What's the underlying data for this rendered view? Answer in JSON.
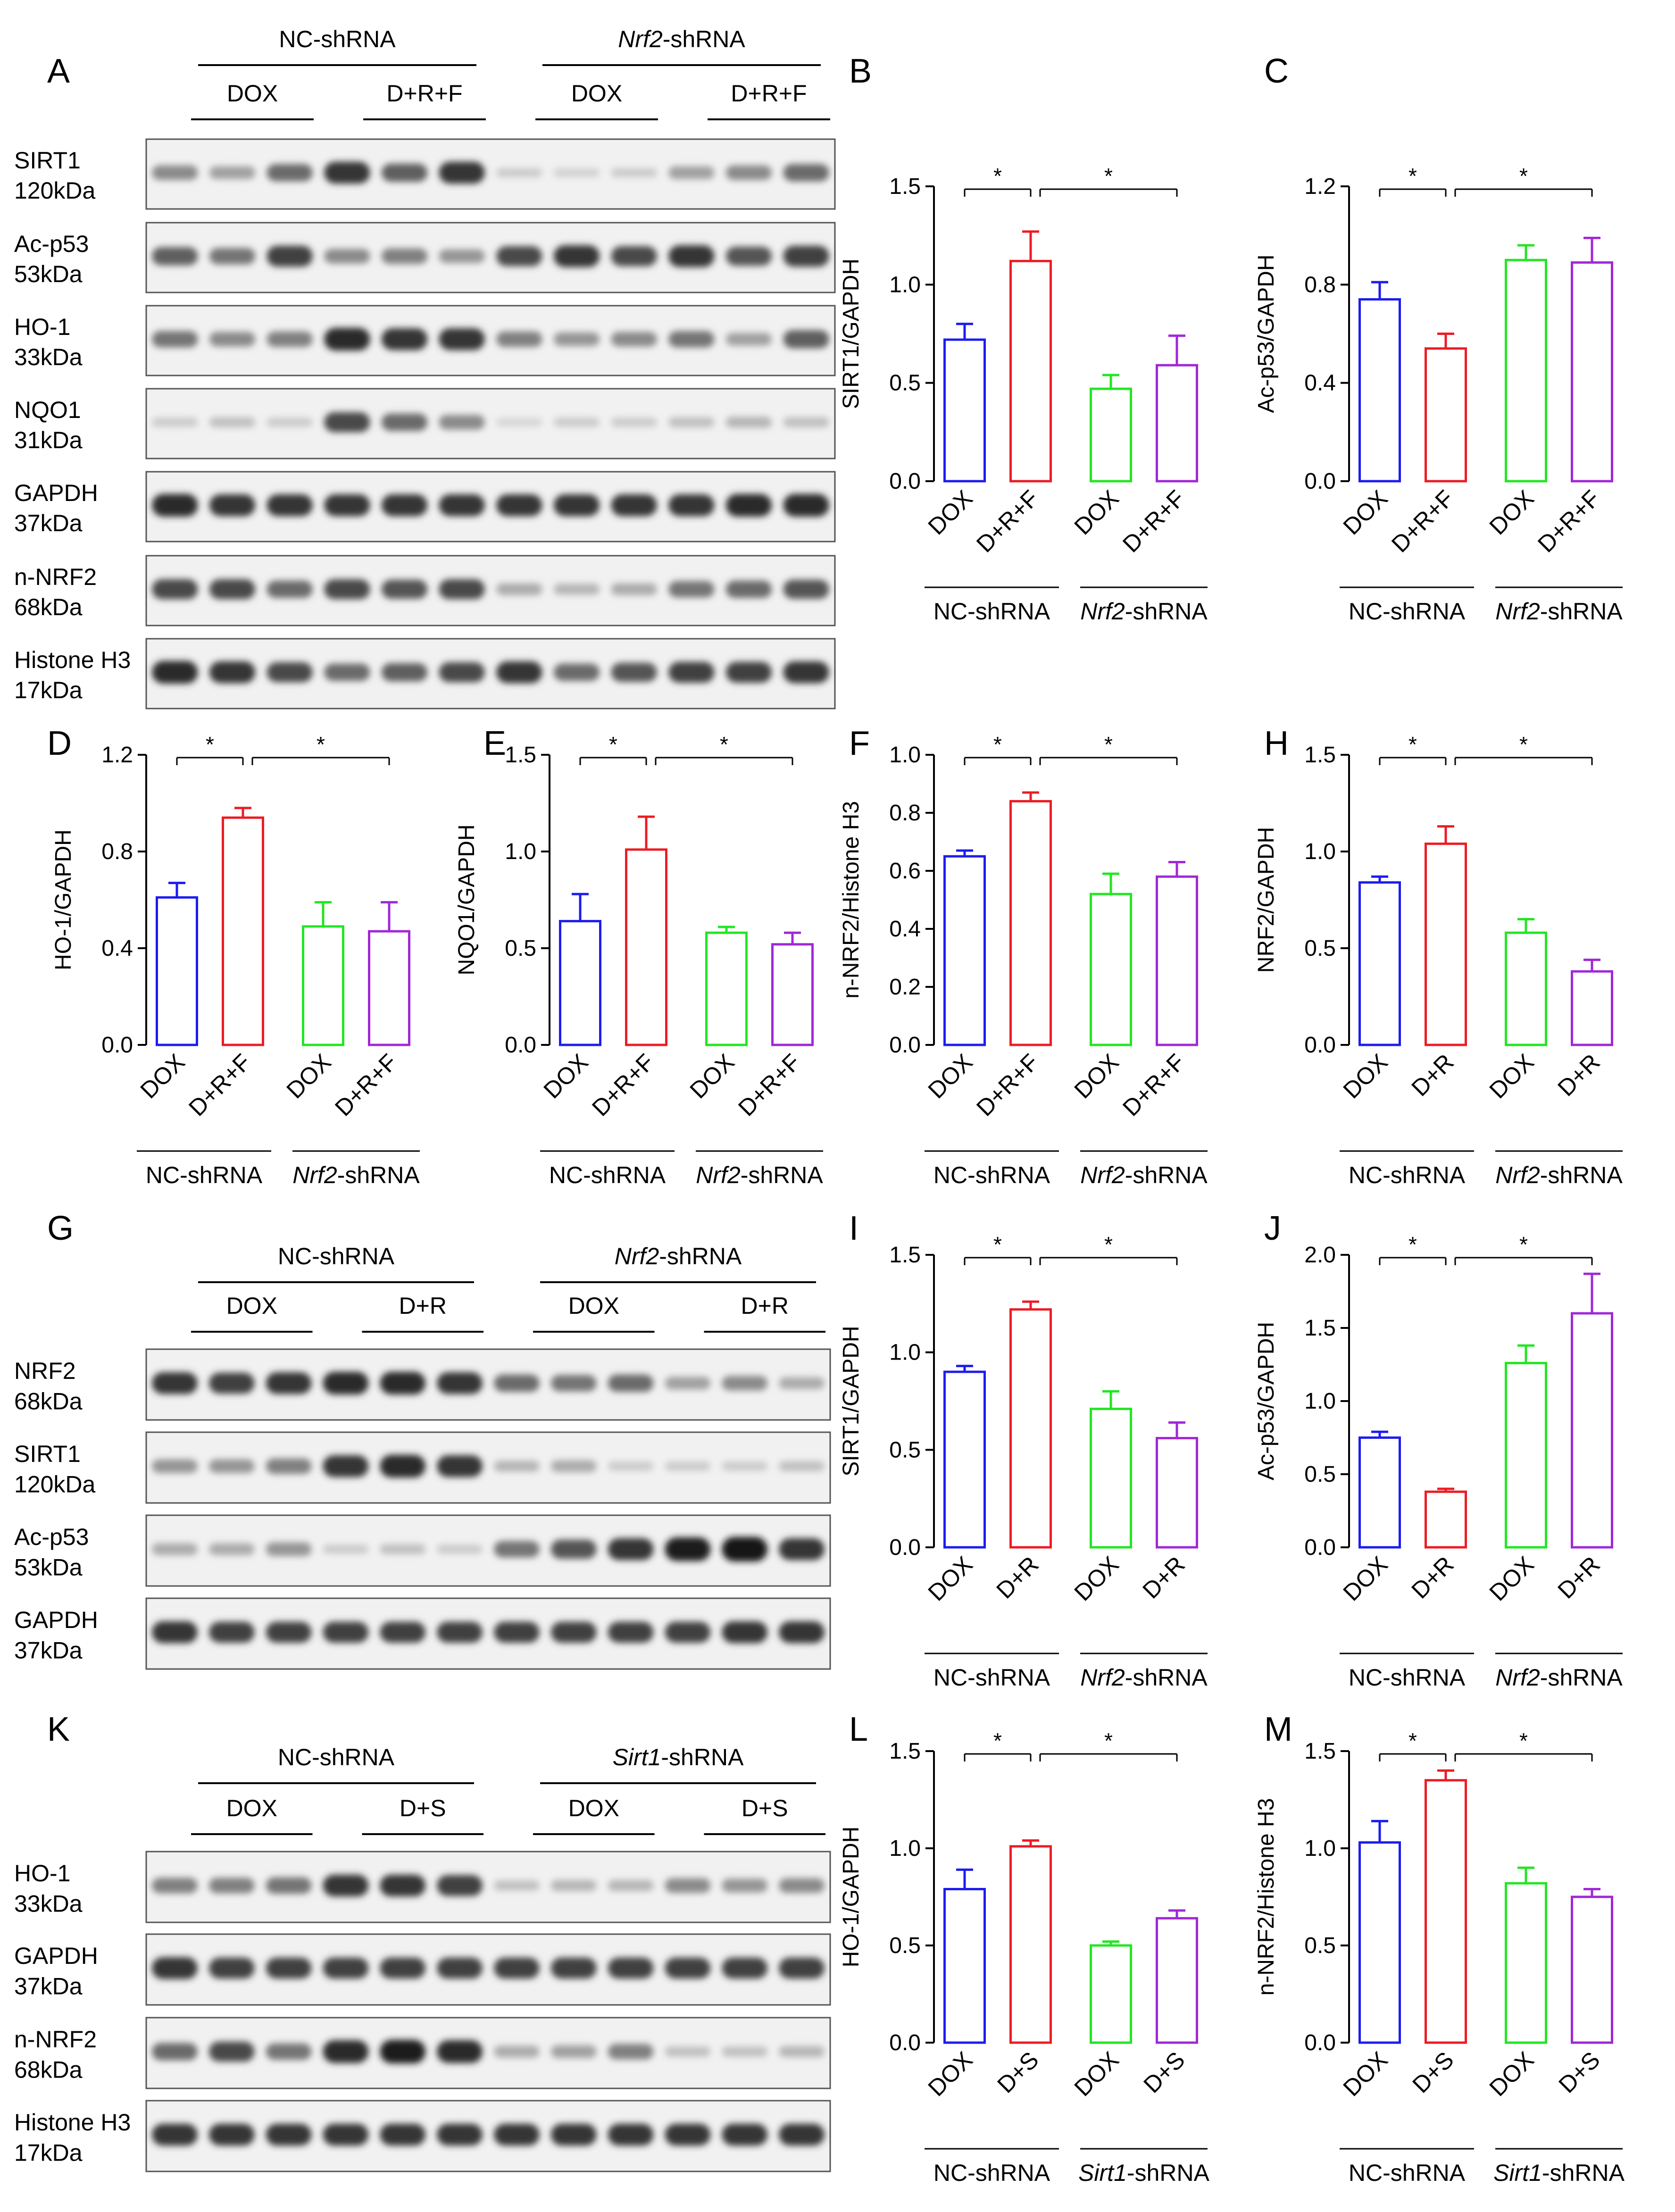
{
  "figure": {
    "blot_panels": [
      {
        "letter": "A",
        "groups": [
          {
            "name": "NC-shRNA",
            "italic": "",
            "rest": "NC-shRNA",
            "treatments": [
              "DOX",
              "D+R+F"
            ]
          },
          {
            "name": "Nrf2-shRNA",
            "italic": "Nrf2",
            "rest": "-shRNA",
            "treatments": [
              "DOX",
              "D+R+F"
            ]
          }
        ],
        "rows": [
          {
            "protein": "SIRT1",
            "mw": "120kDa",
            "intensity": [
              0.45,
              0.35,
              0.6,
              0.85,
              0.65,
              0.85,
              0.15,
              0.12,
              0.15,
              0.35,
              0.45,
              0.6
            ]
          },
          {
            "protein": "Ac-p53",
            "mw": "53kDa",
            "intensity": [
              0.65,
              0.55,
              0.8,
              0.45,
              0.5,
              0.4,
              0.75,
              0.85,
              0.75,
              0.85,
              0.7,
              0.8
            ]
          },
          {
            "protein": "HO-1",
            "mw": "33kDa",
            "intensity": [
              0.55,
              0.45,
              0.5,
              0.9,
              0.85,
              0.85,
              0.5,
              0.4,
              0.45,
              0.55,
              0.35,
              0.65
            ]
          },
          {
            "protein": "NQO1",
            "mw": "31kDa",
            "intensity": [
              0.15,
              0.2,
              0.15,
              0.75,
              0.6,
              0.45,
              0.1,
              0.15,
              0.15,
              0.2,
              0.25,
              0.2
            ]
          },
          {
            "protein": "GAPDH",
            "mw": "37kDa",
            "intensity": [
              0.9,
              0.85,
              0.85,
              0.85,
              0.85,
              0.85,
              0.85,
              0.85,
              0.85,
              0.85,
              0.9,
              0.9
            ]
          },
          {
            "protein": "n-NRF2",
            "mw": "68kDa",
            "intensity": [
              0.75,
              0.75,
              0.6,
              0.75,
              0.7,
              0.75,
              0.3,
              0.25,
              0.3,
              0.55,
              0.6,
              0.7
            ]
          },
          {
            "protein": "Histone H3",
            "mw": "17kDa",
            "intensity": [
              0.9,
              0.85,
              0.75,
              0.6,
              0.65,
              0.75,
              0.85,
              0.6,
              0.7,
              0.8,
              0.8,
              0.85
            ]
          }
        ]
      },
      {
        "letter": "G",
        "groups": [
          {
            "name": "NC-shRNA",
            "italic": "",
            "rest": "NC-shRNA",
            "treatments": [
              "DOX",
              "D+R"
            ]
          },
          {
            "name": "Nrf2-shRNA",
            "italic": "Nrf2",
            "rest": "-shRNA",
            "treatments": [
              "DOX",
              "D+R"
            ]
          }
        ],
        "rows": [
          {
            "protein": "NRF2",
            "mw": "68kDa",
            "intensity": [
              0.85,
              0.8,
              0.85,
              0.9,
              0.9,
              0.85,
              0.6,
              0.55,
              0.6,
              0.35,
              0.45,
              0.3
            ]
          },
          {
            "protein": "SIRT1",
            "mw": "120kDa",
            "intensity": [
              0.4,
              0.4,
              0.5,
              0.85,
              0.9,
              0.85,
              0.25,
              0.3,
              0.15,
              0.15,
              0.15,
              0.2
            ]
          },
          {
            "protein": "Ac-p53",
            "mw": "53kDa",
            "intensity": [
              0.3,
              0.3,
              0.4,
              0.15,
              0.2,
              0.15,
              0.55,
              0.7,
              0.85,
              0.95,
              1.0,
              0.85
            ]
          },
          {
            "protein": "GAPDH",
            "mw": "37kDa",
            "intensity": [
              0.85,
              0.8,
              0.8,
              0.8,
              0.8,
              0.8,
              0.8,
              0.8,
              0.8,
              0.8,
              0.85,
              0.85
            ]
          }
        ]
      },
      {
        "letter": "K",
        "groups": [
          {
            "name": "NC-shRNA",
            "italic": "",
            "rest": "NC-shRNA",
            "treatments": [
              "DOX",
              "D+S"
            ]
          },
          {
            "name": "Sirt1-shRNA",
            "italic": "Sirt1",
            "rest": "-shRNA",
            "treatments": [
              "DOX",
              "D+S"
            ]
          }
        ],
        "rows": [
          {
            "protein": "HO-1",
            "mw": "33kDa",
            "intensity": [
              0.5,
              0.5,
              0.55,
              0.85,
              0.85,
              0.8,
              0.2,
              0.25,
              0.25,
              0.45,
              0.4,
              0.45
            ]
          },
          {
            "protein": "GAPDH",
            "mw": "37kDa",
            "intensity": [
              0.85,
              0.8,
              0.8,
              0.8,
              0.8,
              0.8,
              0.8,
              0.8,
              0.8,
              0.8,
              0.8,
              0.8
            ]
          },
          {
            "protein": "n-NRF2",
            "mw": "68kDa",
            "intensity": [
              0.6,
              0.75,
              0.55,
              0.9,
              0.95,
              0.9,
              0.3,
              0.35,
              0.5,
              0.2,
              0.2,
              0.25
            ]
          },
          {
            "protein": "Histone H3",
            "mw": "17kDa",
            "intensity": [
              0.85,
              0.85,
              0.85,
              0.85,
              0.85,
              0.85,
              0.85,
              0.85,
              0.85,
              0.85,
              0.85,
              0.85
            ]
          }
        ]
      }
    ],
    "bar_colors": [
      "#1c1cf0",
      "#ec1c24",
      "#22e622",
      "#a028d8"
    ]
  },
  "chart_data": [
    {
      "letter": "B",
      "type": "bar",
      "ylabel": "SIRT1/GAPDH",
      "ylim": [
        0,
        1.5
      ],
      "ticks": [
        "0.0",
        "0.5",
        "1.0",
        "1.5"
      ],
      "categories": [
        "DOX",
        "D+R+F",
        "DOX",
        "D+R+F"
      ],
      "values": [
        0.72,
        1.12,
        0.47,
        0.59
      ],
      "errors": [
        0.08,
        0.15,
        0.07,
        0.15
      ],
      "groups": [
        {
          "italic": "",
          "rest": "NC-shRNA"
        },
        {
          "italic": "Nrf2",
          "rest": "-shRNA"
        }
      ],
      "significance": [
        "*",
        "*"
      ]
    },
    {
      "letter": "C",
      "type": "bar",
      "ylabel": "Ac-p53/GAPDH",
      "ylim": [
        0,
        1.2
      ],
      "ticks": [
        "0.0",
        "0.4",
        "0.8",
        "1.2"
      ],
      "categories": [
        "DOX",
        "D+R+F",
        "DOX",
        "D+R+F"
      ],
      "values": [
        0.74,
        0.54,
        0.9,
        0.89
      ],
      "errors": [
        0.07,
        0.06,
        0.06,
        0.1
      ],
      "groups": [
        {
          "italic": "",
          "rest": "NC-shRNA"
        },
        {
          "italic": "Nrf2",
          "rest": "-shRNA"
        }
      ],
      "significance": [
        "*",
        "*"
      ]
    },
    {
      "letter": "D",
      "type": "bar",
      "ylabel": "HO-1/GAPDH",
      "ylim": [
        0,
        1.2
      ],
      "ticks": [
        "0.0",
        "0.4",
        "0.8",
        "1.2"
      ],
      "categories": [
        "DOX",
        "D+R+F",
        "DOX",
        "D+R+F"
      ],
      "values": [
        0.61,
        0.94,
        0.49,
        0.47
      ],
      "errors": [
        0.06,
        0.04,
        0.1,
        0.12
      ],
      "groups": [
        {
          "italic": "",
          "rest": "NC-shRNA"
        },
        {
          "italic": "Nrf2",
          "rest": "-shRNA"
        }
      ],
      "significance": [
        "*",
        "*"
      ]
    },
    {
      "letter": "E",
      "type": "bar",
      "ylabel": "NQO1/GAPDH",
      "ylim": [
        0,
        1.5
      ],
      "ticks": [
        "0.0",
        "0.5",
        "1.0",
        "1.5"
      ],
      "categories": [
        "DOX",
        "D+R+F",
        "DOX",
        "D+R+F"
      ],
      "values": [
        0.64,
        1.01,
        0.58,
        0.52
      ],
      "errors": [
        0.14,
        0.17,
        0.03,
        0.06
      ],
      "groups": [
        {
          "italic": "",
          "rest": "NC-shRNA"
        },
        {
          "italic": "Nrf2",
          "rest": "-shRNA"
        }
      ],
      "significance": [
        "*",
        "*"
      ]
    },
    {
      "letter": "F",
      "type": "bar",
      "ylabel": "n-NRF2/Histone H3",
      "ylim": [
        0,
        1.0
      ],
      "ticks": [
        "0.0",
        "0.2",
        "0.4",
        "0.6",
        "0.8",
        "1.0"
      ],
      "categories": [
        "DOX",
        "D+R+F",
        "DOX",
        "D+R+F"
      ],
      "values": [
        0.65,
        0.84,
        0.52,
        0.58
      ],
      "errors": [
        0.02,
        0.03,
        0.07,
        0.05
      ],
      "groups": [
        {
          "italic": "",
          "rest": "NC-shRNA"
        },
        {
          "italic": "Nrf2",
          "rest": "-shRNA"
        }
      ],
      "significance": [
        "*",
        "*"
      ]
    },
    {
      "letter": "H",
      "type": "bar",
      "ylabel": "NRF2/GAPDH",
      "ylim": [
        0,
        1.5
      ],
      "ticks": [
        "0.0",
        "0.5",
        "1.0",
        "1.5"
      ],
      "categories": [
        "DOX",
        "D+R",
        "DOX",
        "D+R"
      ],
      "values": [
        0.84,
        1.04,
        0.58,
        0.38
      ],
      "errors": [
        0.03,
        0.09,
        0.07,
        0.06
      ],
      "groups": [
        {
          "italic": "",
          "rest": "NC-shRNA"
        },
        {
          "italic": "Nrf2",
          "rest": "-shRNA"
        }
      ],
      "significance": [
        "*",
        "*"
      ]
    },
    {
      "letter": "I",
      "type": "bar",
      "ylabel": "SIRT1/GAPDH",
      "ylim": [
        0,
        1.5
      ],
      "ticks": [
        "0.0",
        "0.5",
        "1.0",
        "1.5"
      ],
      "categories": [
        "DOX",
        "D+R",
        "DOX",
        "D+R"
      ],
      "values": [
        0.9,
        1.22,
        0.71,
        0.56
      ],
      "errors": [
        0.03,
        0.04,
        0.09,
        0.08
      ],
      "groups": [
        {
          "italic": "",
          "rest": "NC-shRNA"
        },
        {
          "italic": "Nrf2",
          "rest": "-shRNA"
        }
      ],
      "significance": [
        "*",
        "*"
      ]
    },
    {
      "letter": "J",
      "type": "bar",
      "ylabel": "Ac-p53/GAPDH",
      "ylim": [
        0,
        2.0
      ],
      "ticks": [
        "0.0",
        "0.5",
        "1.0",
        "1.5",
        "2.0"
      ],
      "categories": [
        "DOX",
        "D+R",
        "DOX",
        "D+R"
      ],
      "values": [
        0.75,
        0.38,
        1.26,
        1.6
      ],
      "errors": [
        0.04,
        0.02,
        0.12,
        0.27
      ],
      "groups": [
        {
          "italic": "",
          "rest": "NC-shRNA"
        },
        {
          "italic": "Nrf2",
          "rest": "-shRNA"
        }
      ],
      "significance": [
        "*",
        "*"
      ]
    },
    {
      "letter": "L",
      "type": "bar",
      "ylabel": "HO-1/GAPDH",
      "ylim": [
        0,
        1.5
      ],
      "ticks": [
        "0.0",
        "0.5",
        "1.0",
        "1.5"
      ],
      "categories": [
        "DOX",
        "D+S",
        "DOX",
        "D+S"
      ],
      "values": [
        0.79,
        1.01,
        0.5,
        0.64
      ],
      "errors": [
        0.1,
        0.03,
        0.02,
        0.04
      ],
      "groups": [
        {
          "italic": "",
          "rest": "NC-shRNA"
        },
        {
          "italic": "Sirt1",
          "rest": "-shRNA"
        }
      ],
      "significance": [
        "*",
        "*"
      ]
    },
    {
      "letter": "M",
      "type": "bar",
      "ylabel": "n-NRF2/Histone H3",
      "ylim": [
        0,
        1.5
      ],
      "ticks": [
        "0.0",
        "0.5",
        "1.0",
        "1.5"
      ],
      "categories": [
        "DOX",
        "D+S",
        "DOX",
        "D+S"
      ],
      "values": [
        1.03,
        1.35,
        0.82,
        0.75
      ],
      "errors": [
        0.11,
        0.05,
        0.08,
        0.04
      ],
      "groups": [
        {
          "italic": "",
          "rest": "NC-shRNA"
        },
        {
          "italic": "Sirt1",
          "rest": "-shRNA"
        }
      ],
      "significance": [
        "*",
        "*"
      ]
    }
  ]
}
